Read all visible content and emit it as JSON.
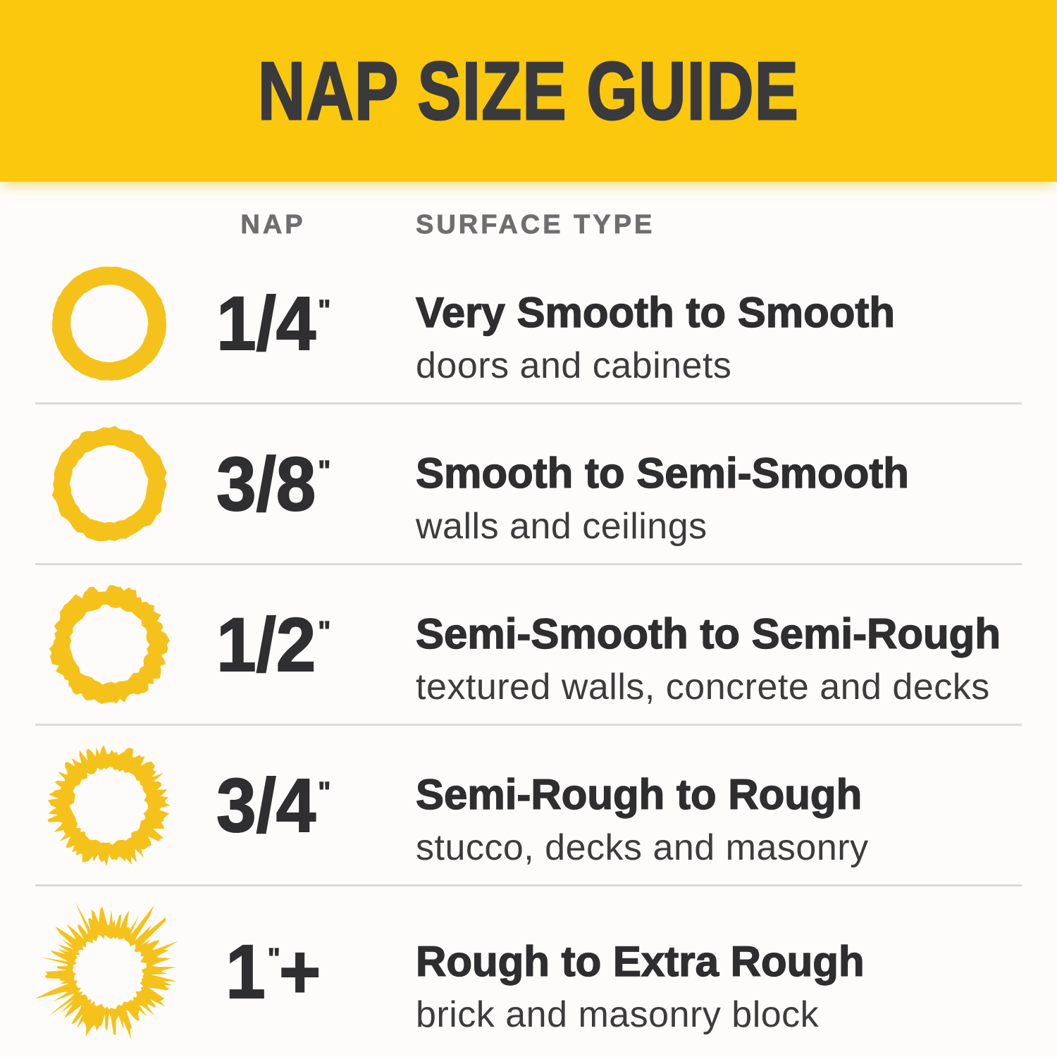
{
  "header": {
    "title": "NAP SIZE GUIDE"
  },
  "columns": {
    "nap": "NAP",
    "surface": "SURFACE TYPE"
  },
  "rows": [
    {
      "size": "1/4",
      "mark": "\"",
      "suffix": "",
      "title": "Very Smooth to Smooth",
      "description": "doors and cabinets",
      "icon": "roller-nap-ring-smooth",
      "ring": {
        "texture": "smooth",
        "r_out": 81,
        "r_in": 55,
        "jitter_out": 0.6,
        "jitter_in": 0.5,
        "points": 120,
        "seed": 11,
        "hair": 0
      }
    },
    {
      "size": "3/8",
      "mark": "\"",
      "suffix": "",
      "title": "Smooth to Semi-Smooth",
      "description": "walls and ceilings",
      "icon": "roller-nap-ring-semi-smooth",
      "ring": {
        "texture": "semi-smooth",
        "r_out": 81,
        "r_in": 55,
        "jitter_out": 3,
        "jitter_in": 1.5,
        "points": 64,
        "seed": 22,
        "hair": 0
      }
    },
    {
      "size": "1/2",
      "mark": "\"",
      "suffix": "",
      "title": "Semi-Smooth to Semi-Rough",
      "description": "textured walls, concrete and decks",
      "icon": "roller-nap-ring-semi-rough",
      "ring": {
        "texture": "semi-rough",
        "r_out": 81,
        "r_in": 55,
        "jitter_out": 5.5,
        "jitter_in": 2.5,
        "points": 96,
        "seed": 33,
        "hair": 0
      }
    },
    {
      "size": "3/4",
      "mark": "\"",
      "suffix": "",
      "title": "Semi-Rough to Rough",
      "description": "stucco, decks and masonry",
      "icon": "roller-nap-ring-rough",
      "ring": {
        "texture": "rough",
        "r_out": 80,
        "r_in": 53,
        "jitter_out": 10,
        "jitter_in": 3.5,
        "points": 140,
        "seed": 44,
        "hair": 0
      }
    },
    {
      "size": "1",
      "mark": "\"",
      "suffix": "+",
      "title": "Rough to Extra Rough",
      "description": "brick and masonry block",
      "icon": "roller-nap-ring-extra-rough",
      "ring": {
        "texture": "extra-rough",
        "r_out": 75,
        "r_in": 50,
        "jitter_out": 18,
        "jitter_in": 4,
        "points": 180,
        "seed": 55,
        "hair": 1
      }
    }
  ],
  "colors": {
    "header_bg": "#FCC80D",
    "header_text": "#3A3A3C",
    "column_header": "#6E6E70",
    "nap": "#2F2F31",
    "title": "#2E2E30",
    "description": "#3C3C3E",
    "divider": "#D9D9D8",
    "background": "#FDFCFA",
    "ring": "#F5C21C"
  }
}
